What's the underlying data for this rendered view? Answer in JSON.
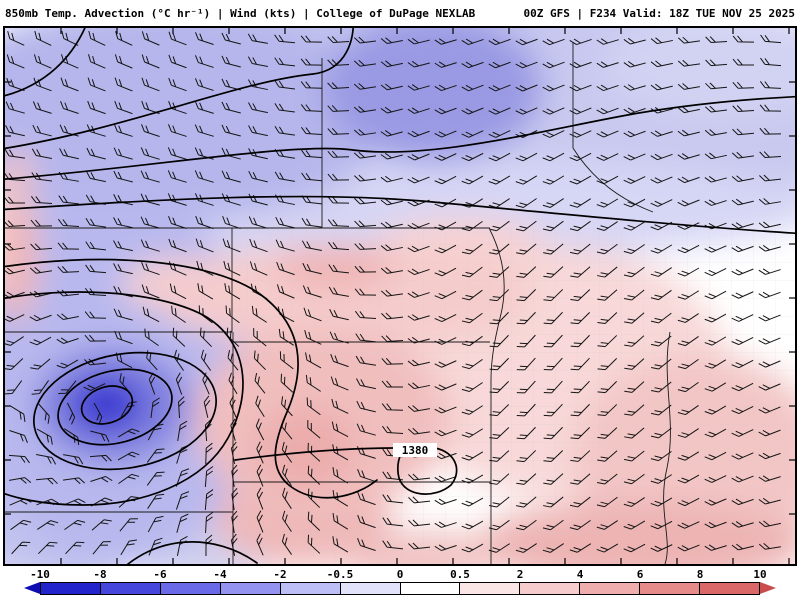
{
  "header": {
    "left": "850mb Temp. Advection (°C hr⁻¹) | Wind (kts) | College of DuPage NEXLAB",
    "right": "00Z GFS | F234 Valid: 18Z TUE NOV 25 2025"
  },
  "map": {
    "contour_label": "1380"
  },
  "colorbar": {
    "labels": [
      "-10",
      "-8",
      "-6",
      "-4",
      "-2",
      "-0.5",
      "0",
      "0.5",
      "2",
      "4",
      "6",
      "8",
      "10"
    ],
    "segment_colors": [
      "#2424cd",
      "#4646dc",
      "#6a6ae8",
      "#9494f0",
      "#bebef6",
      "#e2e2fb",
      "#ffffff",
      "#fbe6e6",
      "#f6cccc",
      "#f0adad",
      "#e78a8a",
      "#da6868"
    ],
    "arrow_left_color": "#0d0db2",
    "arrow_right_color": "#c94b4b"
  }
}
